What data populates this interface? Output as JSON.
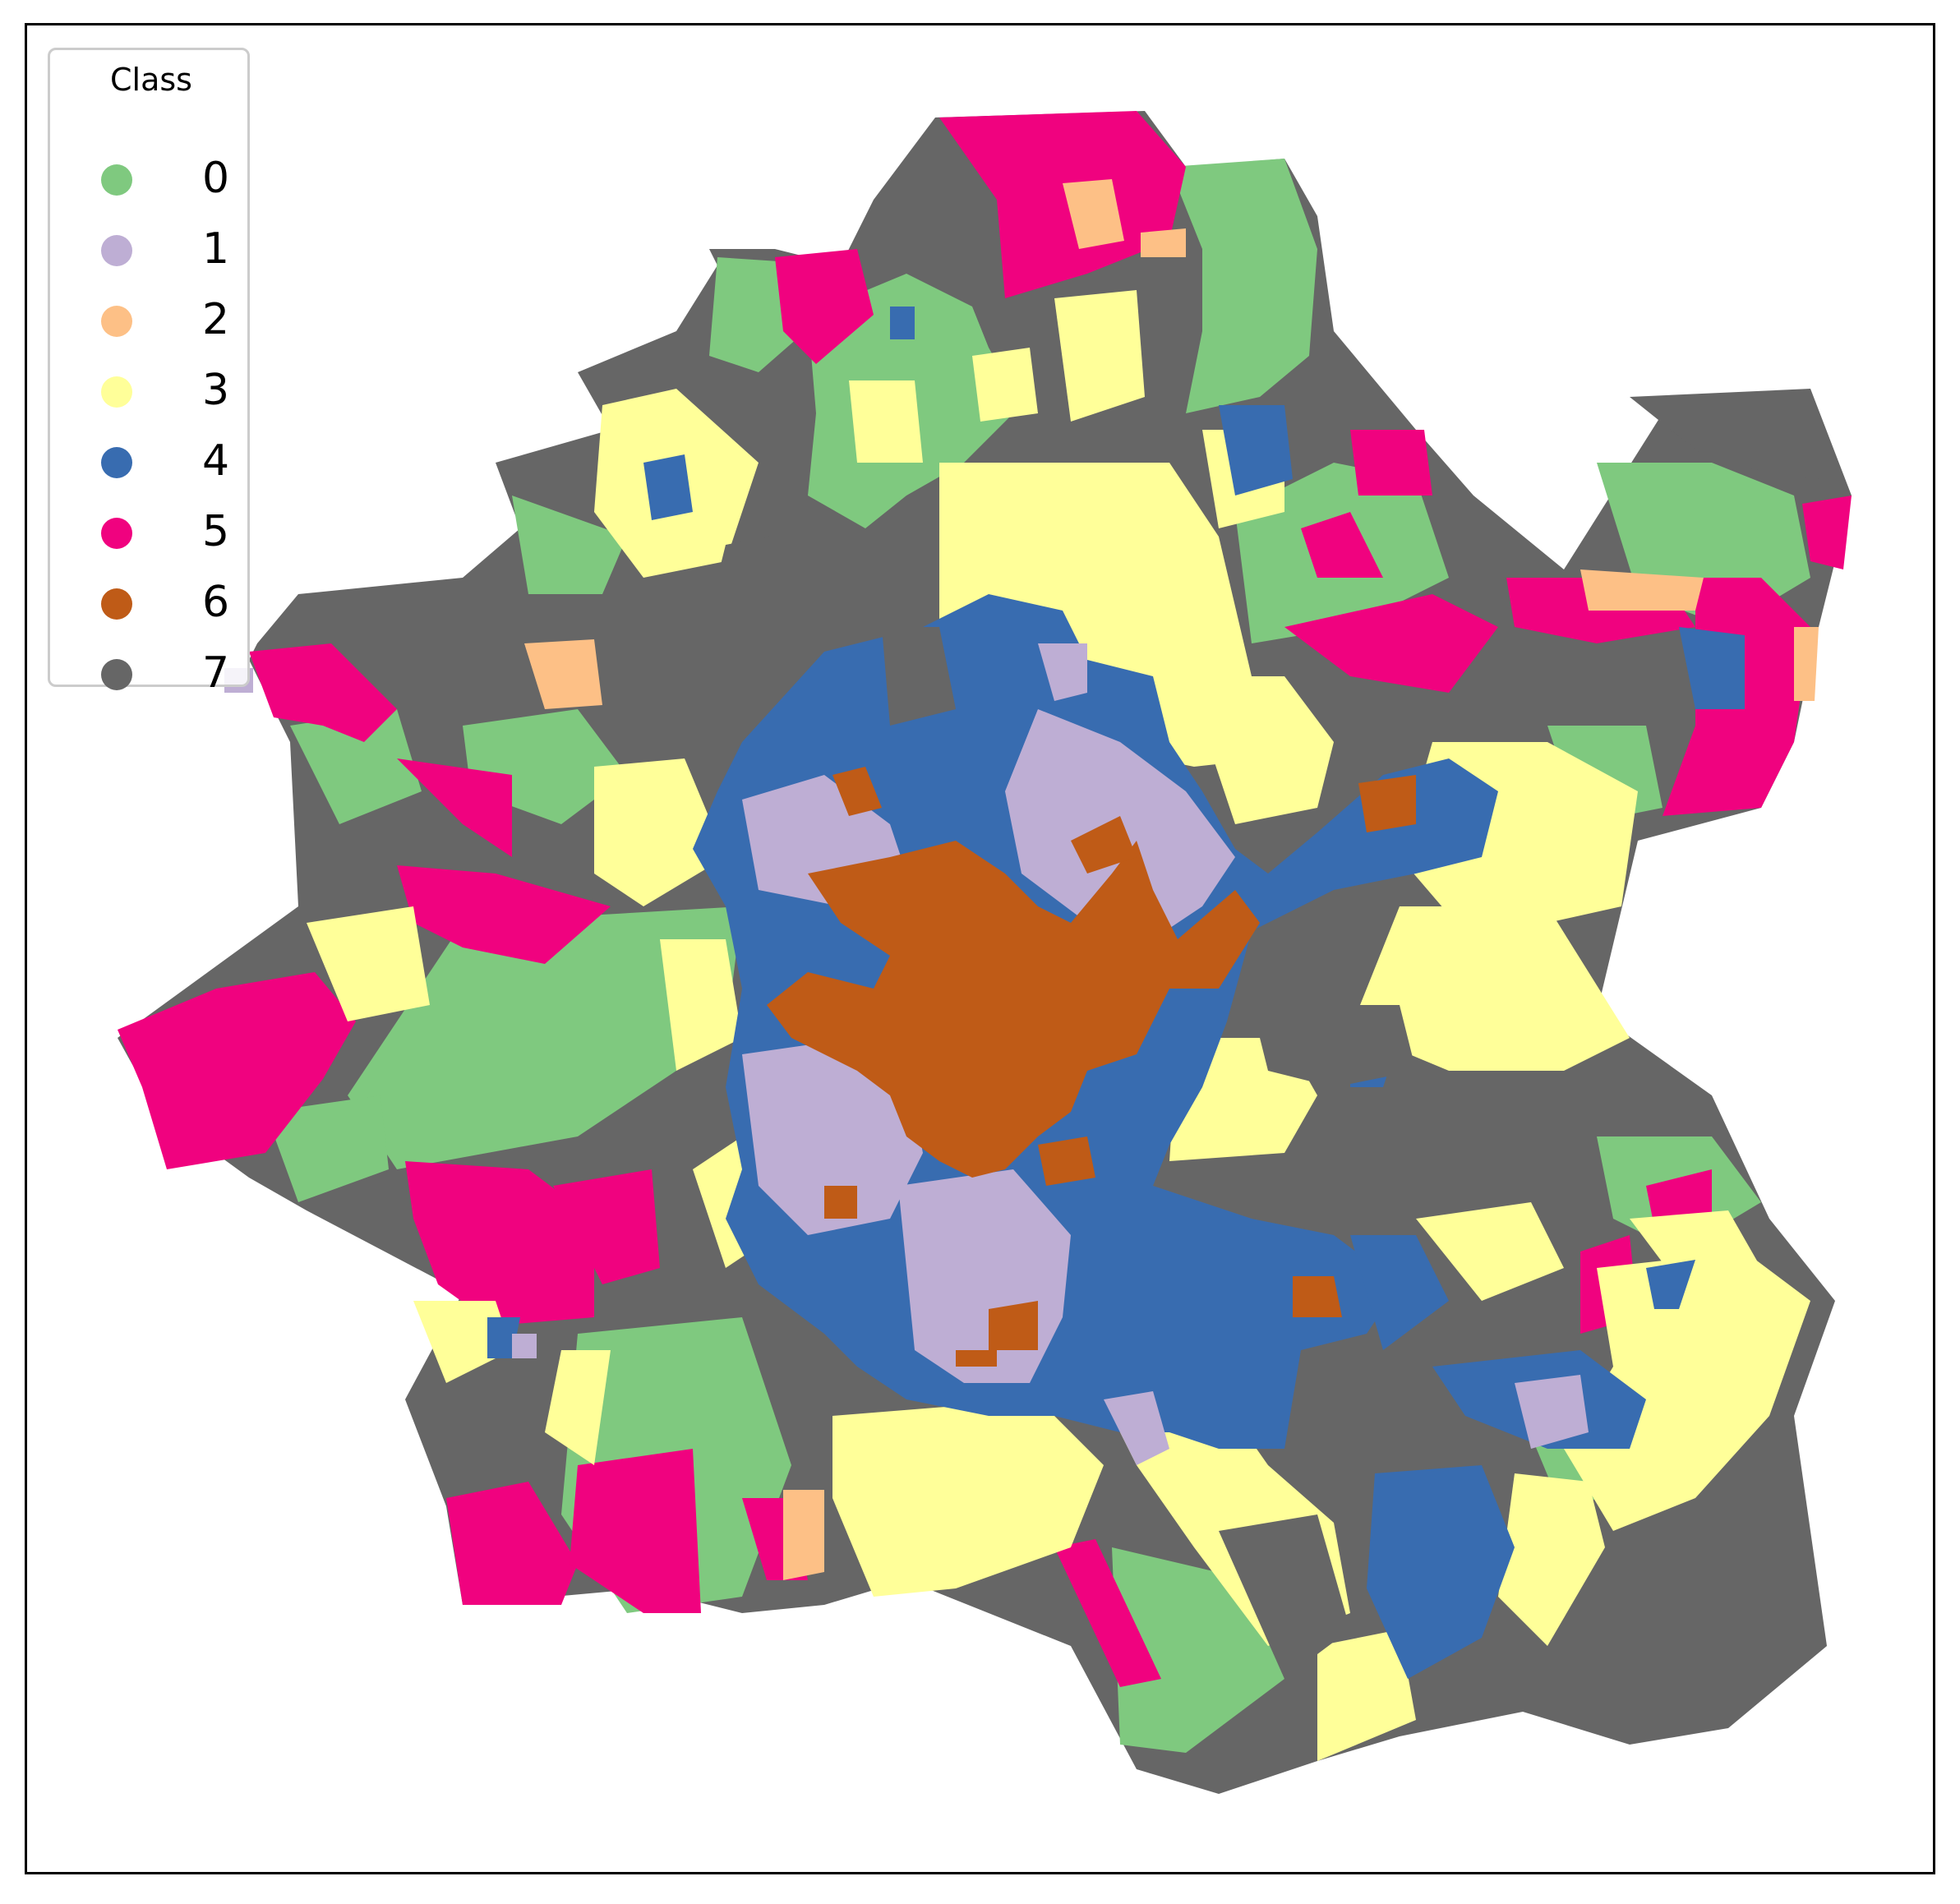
{
  "legend": {
    "title": "Class",
    "items": [
      {
        "label": "0",
        "color": "#7fc97f"
      },
      {
        "label": "1",
        "color": "#beaed4"
      },
      {
        "label": "2",
        "color": "#fdc086"
      },
      {
        "label": "3",
        "color": "#ffff99"
      },
      {
        "label": "4",
        "color": "#386cb0"
      },
      {
        "label": "5",
        "color": "#f0027f"
      },
      {
        "label": "6",
        "color": "#bf5b17"
      },
      {
        "label": "7",
        "color": "#666666"
      }
    ]
  },
  "map": {
    "type": "choropleth",
    "classes": [
      0,
      1,
      2,
      3,
      4,
      5,
      6,
      7
    ],
    "axes_visible": false
  }
}
